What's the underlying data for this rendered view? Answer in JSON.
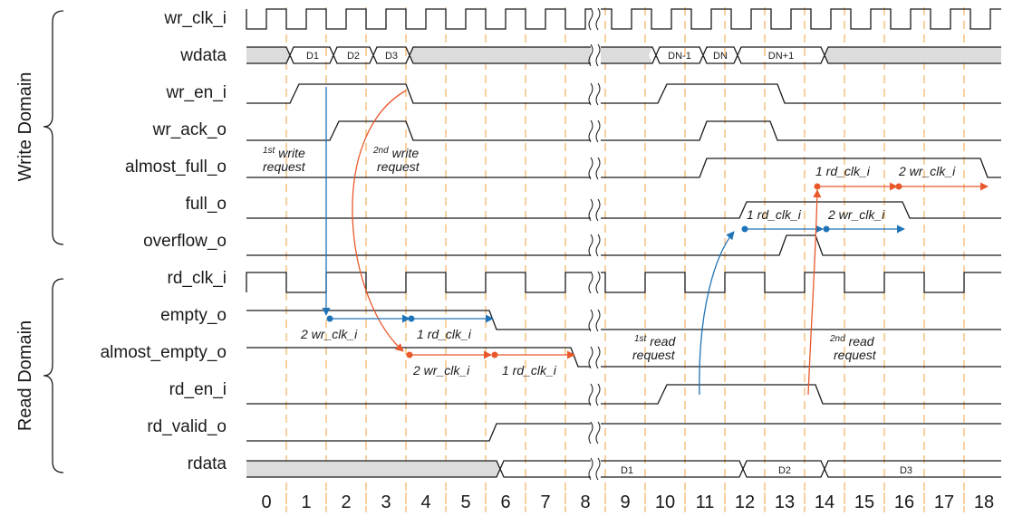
{
  "domains": {
    "write": "Write Domain",
    "read": "Read Domain"
  },
  "signals": {
    "wr_clk_i": "wr_clk_i",
    "wdata": "wdata",
    "wr_en_i": "wr_en_i",
    "wr_ack_o": "wr_ack_o",
    "almost_full_o": "almost_full_o",
    "full_o": "full_o",
    "overflow_o": "overflow_o",
    "rd_clk_i": "rd_clk_i",
    "empty_o": "empty_o",
    "almost_empty_o": "almost_empty_o",
    "rd_en_i": "rd_en_i",
    "rd_valid_o": "rd_valid_o",
    "rdata": "rdata"
  },
  "wdata_values": [
    "D1",
    "D2",
    "D3",
    "DN-1",
    "DN",
    "DN+1"
  ],
  "rdata_values": [
    "D1",
    "D2",
    "D3"
  ],
  "cycles": [
    "0",
    "1",
    "2",
    "3",
    "4",
    "5",
    "6",
    "7",
    "8",
    "9",
    "10",
    "11",
    "12",
    "13",
    "14",
    "15",
    "16",
    "17",
    "18"
  ],
  "annotations": {
    "write1_sup": "1st",
    "write1_main": " write",
    "write1_line2": "request",
    "write2_sup": "2nd",
    "write2_main": " write",
    "write2_line2": "request",
    "read1_sup": "1st",
    "read1_main": " read",
    "read1_line2": "request",
    "read2_sup": "2nd",
    "read2_main": " read",
    "read2_line2": "request",
    "empty_delay1": "2 wr_clk_i",
    "empty_delay2": "1 rd_clk_i",
    "ae_delay1": "2 wr_clk_i",
    "ae_delay2": "1 rd_clk_i",
    "full_delay1": "1 rd_clk_i",
    "full_delay2": "2 wr_clk_i",
    "af_delay1": "1 rd_clk_i",
    "af_delay2": "2 wr_clk_i"
  },
  "colors": {
    "write_arrow": "#e8582a",
    "read_arrow": "#1f73b7",
    "grid": "#f0a040",
    "bus_fill": "#dcdcdc"
  }
}
